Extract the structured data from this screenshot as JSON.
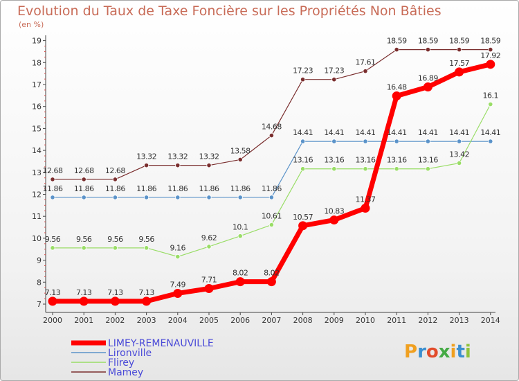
{
  "title": "Evolution du Taux de Taxe Foncière sur les Propriétés Non Bâties",
  "unit": "(en %)",
  "logo": {
    "letters": [
      "P",
      "r",
      "o",
      "x",
      "i",
      "t",
      "i"
    ],
    "colors": [
      "#f0a020",
      "#3a8fd0",
      "#e24b2a",
      "#44aa44",
      "#f0a020",
      "#3a8fd0",
      "#8fc33a"
    ]
  },
  "chart_data": {
    "type": "line",
    "title": "Evolution du Taux de Taxe Foncière sur les Propriétés Non Bâties",
    "ylabel": "(en %)",
    "xlabel": "",
    "x": [
      "2000",
      "2001",
      "2002",
      "2003",
      "2004",
      "2005",
      "2006",
      "2007",
      "2008",
      "2009",
      "2010",
      "2011",
      "2012",
      "2013",
      "2014"
    ],
    "ylim": [
      7,
      19
    ],
    "yticks": [
      "7",
      "8",
      "9",
      "10",
      "11",
      "12",
      "13",
      "14",
      "15",
      "16",
      "17",
      "18",
      "19"
    ],
    "grid": false,
    "legend_position": "bottom-left",
    "series": [
      {
        "name": "LIMEY-REMENAUVILLE",
        "color": "#ff0000",
        "width": 7,
        "values": [
          7.13,
          7.13,
          7.13,
          7.13,
          7.49,
          7.71,
          8.02,
          8.02,
          10.57,
          10.83,
          11.37,
          16.48,
          16.89,
          17.57,
          17.92
        ],
        "labels": [
          "7.13",
          "7.13",
          "7.13",
          "7.13",
          "7.49",
          "7.71",
          "8.02",
          "8.02",
          "10.57",
          "10.83",
          "11.37",
          "16.48",
          "16.89",
          "17.57",
          "17.92"
        ]
      },
      {
        "name": "Lironville",
        "color": "#5b93c9",
        "width": 1.2,
        "values": [
          11.86,
          11.86,
          11.86,
          11.86,
          11.86,
          11.86,
          11.86,
          11.86,
          14.41,
          14.41,
          14.41,
          14.41,
          14.41,
          14.41,
          14.41
        ],
        "labels": [
          "11.86",
          "11.86",
          "11.86",
          "11.86",
          "11.86",
          "11.86",
          "11.86",
          "11.86",
          "14.41",
          "14.41",
          "14.41",
          "14.41",
          "14.41",
          "14.41",
          "14.41"
        ]
      },
      {
        "name": "Flirey",
        "color": "#99dd66",
        "width": 1.2,
        "values": [
          9.56,
          9.56,
          9.56,
          9.56,
          9.16,
          9.62,
          10.1,
          10.61,
          13.16,
          13.16,
          13.16,
          13.16,
          13.16,
          13.42,
          16.1
        ],
        "labels": [
          "9.56",
          "9.56",
          "9.56",
          "9.56",
          "9.16",
          "9.62",
          "10.1",
          "10.61",
          "13.16",
          "13.16",
          "13.16",
          "13.16",
          "13.16",
          "13.42",
          "16.1"
        ]
      },
      {
        "name": "Mamey",
        "color": "#7a2e2e",
        "width": 1.2,
        "values": [
          12.68,
          12.68,
          12.68,
          13.32,
          13.32,
          13.32,
          13.58,
          14.68,
          17.23,
          17.23,
          17.61,
          18.59,
          18.59,
          18.59,
          18.59
        ],
        "labels": [
          "12.68",
          "12.68",
          "12.68",
          "13.32",
          "13.32",
          "13.32",
          "13.58",
          "14.68",
          "17.23",
          "17.23",
          "17.61",
          "18.59",
          "18.59",
          "18.59",
          "18.59"
        ]
      }
    ]
  }
}
